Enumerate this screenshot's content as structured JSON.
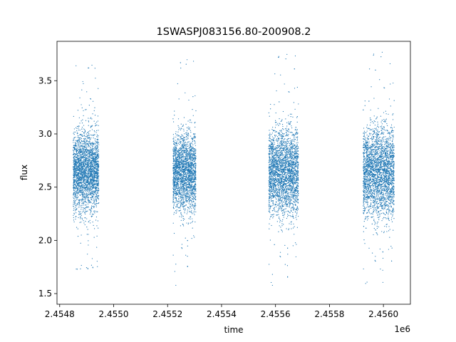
{
  "chart_data": {
    "type": "scatter",
    "title": "1SWASPJ083156.80-200908.2",
    "xlabel": "time",
    "ylabel": "flux",
    "x_offset_label": "1e6",
    "xlim": [
      2454790,
      2456100
    ],
    "ylim": [
      1.4,
      3.87
    ],
    "x_ticks": [
      2454800,
      2455000,
      2455200,
      2455400,
      2455600,
      2455800,
      2456000
    ],
    "x_tick_labels": [
      "2.4548",
      "2.4550",
      "2.4552",
      "2.4554",
      "2.4556",
      "2.4558",
      "2.4560"
    ],
    "y_ticks": [
      1.5,
      2.0,
      2.5,
      3.0,
      3.5
    ],
    "y_tick_labels": [
      "1.5",
      "2.0",
      "2.5",
      "3.0",
      "3.5"
    ],
    "grid": false,
    "legend": "none",
    "series": [
      {
        "color": "#1f77b4",
        "marker_size": 0.6,
        "clusters": [
          {
            "x_range": [
              2454850,
              2454945
            ],
            "y_center": 2.65,
            "y_spread": 0.18,
            "y_min": 1.72,
            "y_max": 3.65,
            "n_points": 2600
          },
          {
            "x_range": [
              2455220,
              2455305
            ],
            "y_center": 2.64,
            "y_spread": 0.18,
            "y_min": 1.55,
            "y_max": 3.7,
            "n_points": 2200
          },
          {
            "x_range": [
              2455575,
              2455685
            ],
            "y_center": 2.64,
            "y_spread": 0.2,
            "y_min": 1.55,
            "y_max": 3.75,
            "n_points": 2800
          },
          {
            "x_range": [
              2455925,
              2456040
            ],
            "y_center": 2.64,
            "y_spread": 0.21,
            "y_min": 1.58,
            "y_max": 3.77,
            "n_points": 3000
          }
        ]
      }
    ]
  }
}
